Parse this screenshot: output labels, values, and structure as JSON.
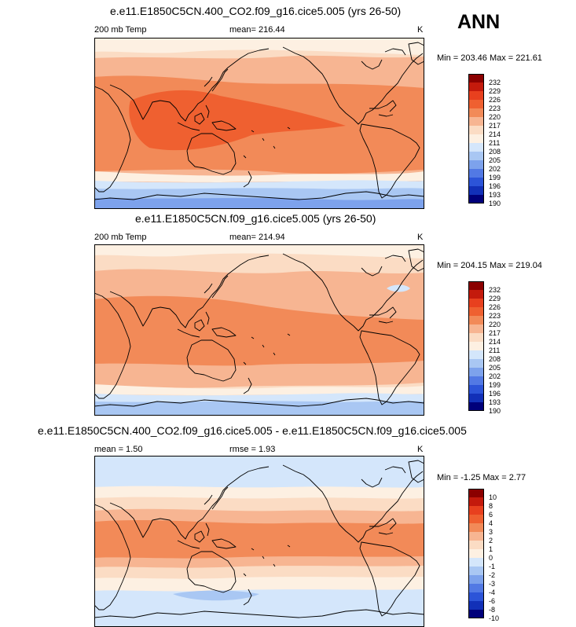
{
  "season": "ANN",
  "panels": [
    {
      "title": "e.e11.E1850C5CN.400_CO2.f09_g16.cice5.005 (yrs 26-50)",
      "left_label": "200 mb Temp",
      "center_label": "mean= 216.44",
      "units": "K",
      "minmax": "Min = 203.46 Max = 221.61",
      "levels": [
        "232",
        "229",
        "226",
        "223",
        "220",
        "217",
        "214",
        "211",
        "208",
        "205",
        "202",
        "199",
        "196",
        "193",
        "190"
      ]
    },
    {
      "title": "e.e11.E1850C5CN.f09_g16.cice5.005 (yrs 26-50)",
      "left_label": "200 mb Temp",
      "center_label": "mean= 214.94",
      "units": "K",
      "minmax": "Min = 204.15 Max = 219.04",
      "levels": [
        "232",
        "229",
        "226",
        "223",
        "220",
        "217",
        "214",
        "211",
        "208",
        "205",
        "202",
        "199",
        "196",
        "193",
        "190"
      ]
    },
    {
      "title": "e.e11.E1850C5CN.400_CO2.f09_g16.cice5.005 - e.e11.E1850C5CN.f09_g16.cice5.005",
      "left_label": "mean =   1.50",
      "center_label": "rmse =   1.93",
      "units": "K",
      "minmax": "Min =  -1.25 Max =   2.77",
      "levels": [
        "10",
        "8",
        "6",
        "4",
        "3",
        "2",
        "1",
        "0",
        "-1",
        "-2",
        "-3",
        "-4",
        "-6",
        "-8",
        "-10"
      ]
    }
  ],
  "colors": [
    "#8b0000",
    "#c41a0c",
    "#e8401e",
    "#ef6030",
    "#f28a58",
    "#f7b592",
    "#fbdcc4",
    "#fdf0e2",
    "#d4e6fb",
    "#a9c7f3",
    "#7da2ec",
    "#5279e4",
    "#2c54d8",
    "#1230b8",
    "#00007a"
  ]
}
